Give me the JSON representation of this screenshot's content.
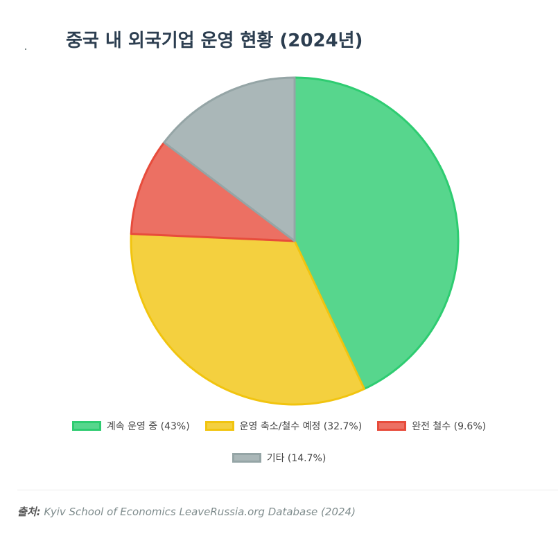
{
  "title": "중국 내 외국기업 운영 현황 (2024년)",
  "source": {
    "label": "출처:",
    "text": "Kyiv School of Economics LeaveRussia.org Database (2024)"
  },
  "chart_data": {
    "type": "pie",
    "slices": [
      {
        "label": "계속 운영 중",
        "legend": "계속 운영 중 (43%)",
        "value": 43,
        "fill": "#57d68d",
        "stroke": "#2ecc71"
      },
      {
        "label": "운영 축소/철수 예정",
        "legend": "운영 축소/철수 예정 (32.7%)",
        "value": 32.7,
        "fill": "#f4d03f",
        "stroke": "#f1c40f"
      },
      {
        "label": "완전 철수",
        "legend": "완전 철수 (9.6%)",
        "value": 9.6,
        "fill": "#ec7063",
        "stroke": "#e74c3c"
      },
      {
        "label": "기타",
        "legend": "기타 (14.7%)",
        "value": 14.7,
        "fill": "#aab7b8",
        "stroke": "#95a5a6"
      }
    ],
    "legend_position": "bottom"
  }
}
